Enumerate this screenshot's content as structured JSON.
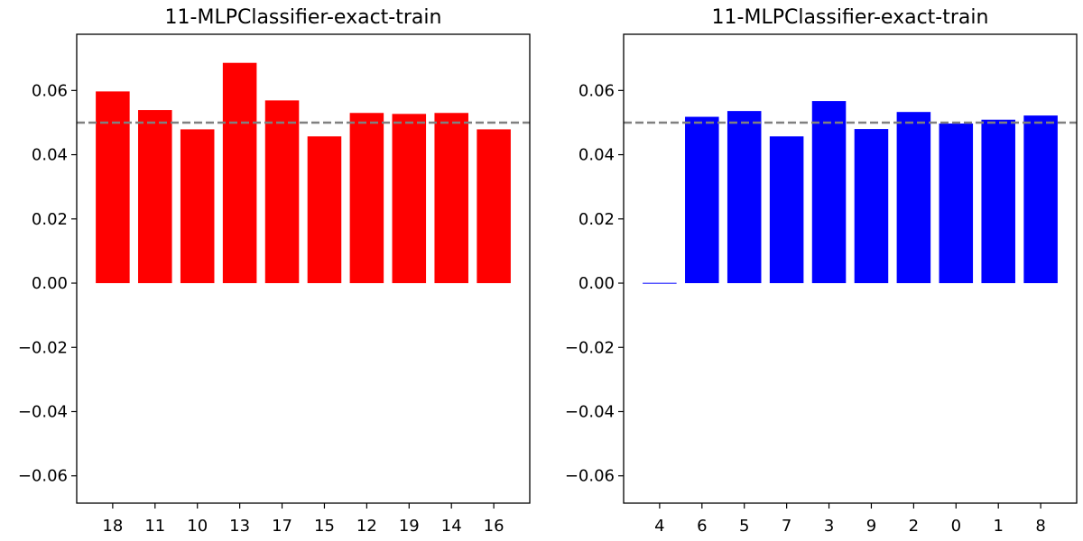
{
  "chart_data": [
    {
      "type": "bar",
      "title": "11-MLPClassifier-exact-train",
      "categories": [
        "18",
        "11",
        "10",
        "13",
        "17",
        "15",
        "12",
        "19",
        "14",
        "16"
      ],
      "values": [
        0.0597,
        0.0539,
        0.0479,
        0.0686,
        0.0569,
        0.0457,
        0.053,
        0.0527,
        0.053,
        0.0479
      ],
      "bar_color": "#ff0000",
      "reference_line": {
        "y": 0.05,
        "style": "dashed",
        "color": "#808080"
      },
      "ylim": [
        -0.0685,
        0.0775
      ],
      "yticks": [
        "0.06",
        "0.04",
        "0.02",
        "0.00",
        "−0.02",
        "−0.04",
        "−0.06"
      ],
      "ytick_values": [
        0.06,
        0.04,
        0.02,
        0.0,
        -0.02,
        -0.04,
        -0.06
      ],
      "grid": false,
      "xlabel": "",
      "ylabel": ""
    },
    {
      "type": "bar",
      "title": "11-MLPClassifier-exact-train",
      "categories": [
        "4",
        "6",
        "5",
        "7",
        "3",
        "9",
        "2",
        "0",
        "1",
        "8"
      ],
      "values": [
        0.0001,
        0.0518,
        0.0536,
        0.0457,
        0.0567,
        0.048,
        0.0533,
        0.0497,
        0.0509,
        0.0522
      ],
      "bar_color": "#0000ff",
      "reference_line": {
        "y": 0.05,
        "style": "dashed",
        "color": "#808080"
      },
      "ylim": [
        -0.0685,
        0.0775
      ],
      "yticks": [
        "0.06",
        "0.04",
        "0.02",
        "0.00",
        "−0.02",
        "−0.04",
        "−0.06"
      ],
      "ytick_values": [
        0.06,
        0.04,
        0.02,
        0.0,
        -0.02,
        -0.04,
        -0.06
      ],
      "grid": false,
      "xlabel": "",
      "ylabel": ""
    }
  ]
}
